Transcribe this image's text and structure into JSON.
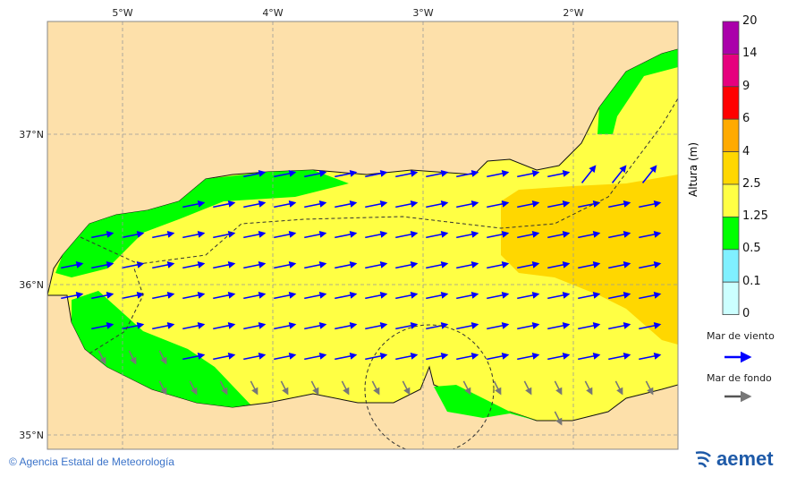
{
  "map": {
    "lon_labels": [
      "5°W",
      "4°W",
      "3°W",
      "2°W"
    ],
    "lat_labels": [
      "37°N",
      "36°N",
      "35°N"
    ],
    "land_color": "#fde0aa"
  },
  "colorbar": {
    "title": "Altura (m)",
    "ticks": [
      "20",
      "14",
      "9",
      "6",
      "4",
      "2.5",
      "1.25",
      "0.5",
      "0.1",
      "0"
    ],
    "colors": [
      "#aa00aa",
      "#e6007e",
      "#ff0000",
      "#ffaa00",
      "#ffd700",
      "#ffff44",
      "#00ff00",
      "#80f0ff",
      "#ccffff"
    ]
  },
  "legend": {
    "wind_sea": "Mar de viento",
    "wind_sea_color": "#0000ff",
    "swell": "Mar de fondo",
    "swell_color": "#555555"
  },
  "footer": {
    "credit": "© Agencia Estatal de Meteorología",
    "logo": "aemet"
  }
}
